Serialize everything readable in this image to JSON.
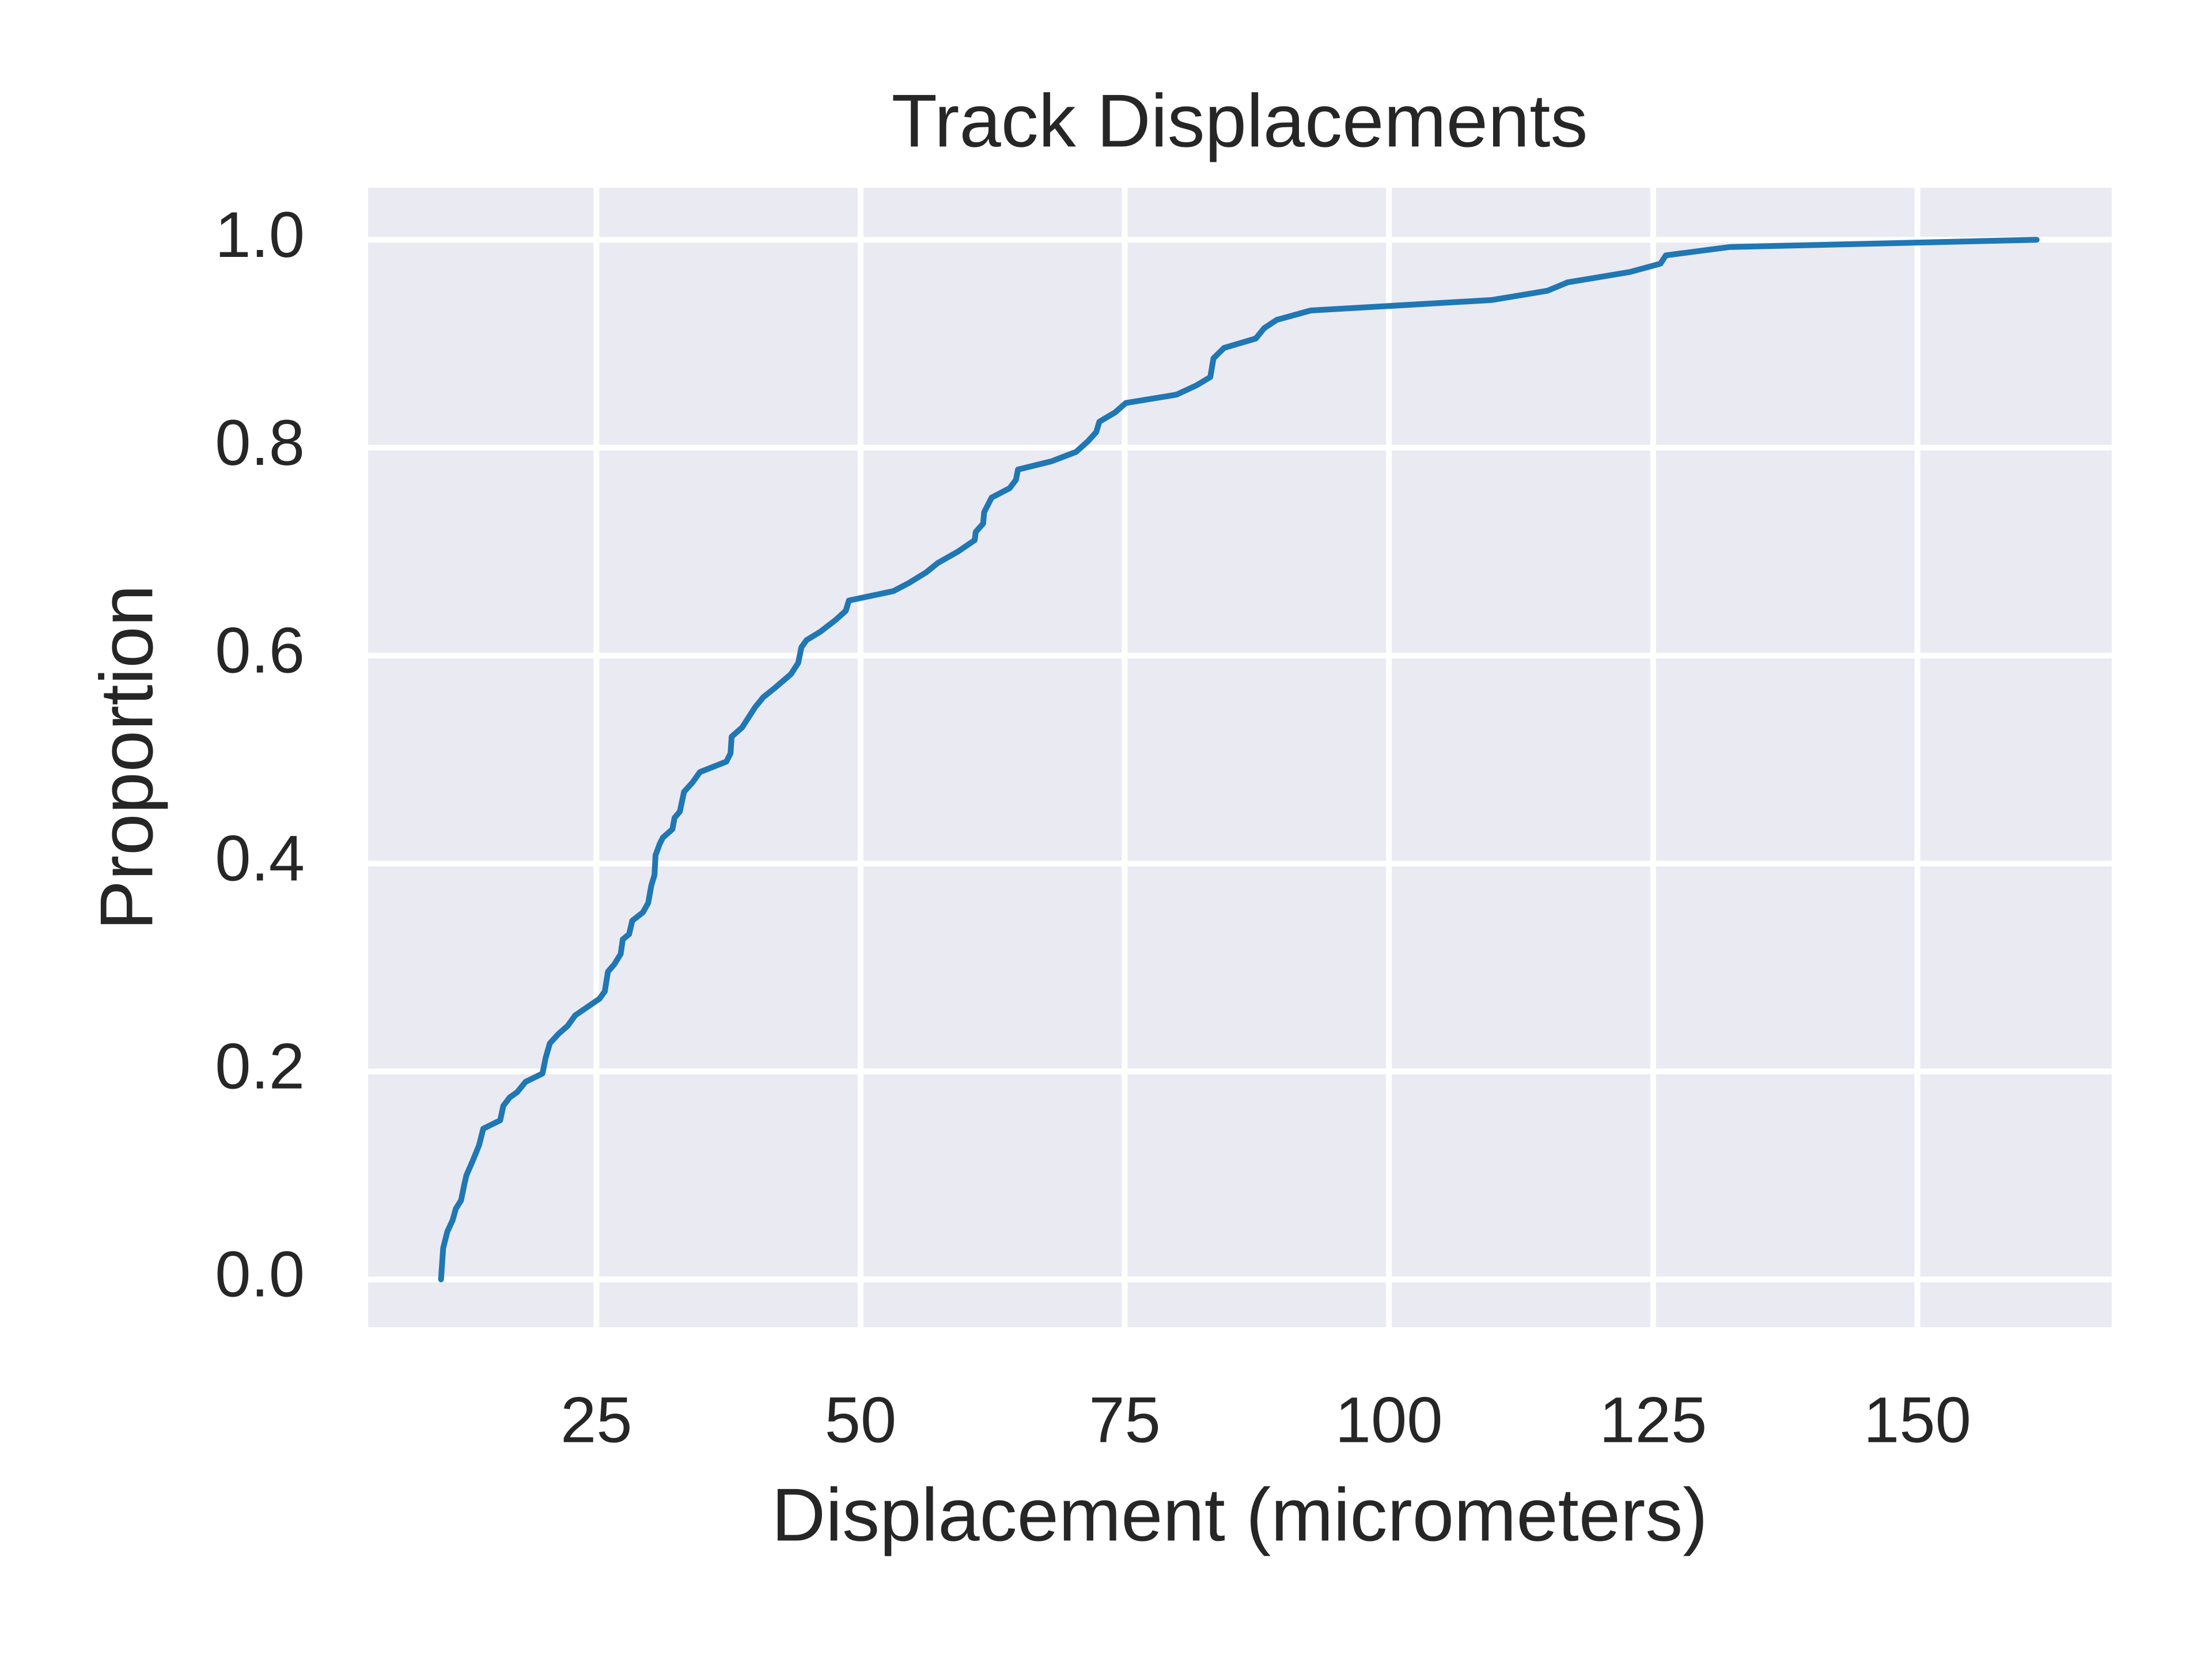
{
  "chart_data": {
    "type": "line",
    "title": "Track Displacements",
    "x_label": "Displacement (micrometers)",
    "y_label": "Proportion",
    "x": [
      10.3,
      10.5,
      10.9,
      11.4,
      11.7,
      12.2,
      12.5,
      12.7,
      13.3,
      13.9,
      14.3,
      15.9,
      16.2,
      16.8,
      17.5,
      18.3,
      19.9,
      20.2,
      20.6,
      21.4,
      22.3,
      23.0,
      25.3,
      25.8,
      26.1,
      26.7,
      27.3,
      27.5,
      28.1,
      28.4,
      29.4,
      29.9,
      30.2,
      30.5,
      30.6,
      31.0,
      31.3,
      32.2,
      32.4,
      32.9,
      33.3,
      34.1,
      34.8,
      37.3,
      37.7,
      37.8,
      38.8,
      40.0,
      40.8,
      41.9,
      43.4,
      44.1,
      44.4,
      44.9,
      46.2,
      47.6,
      48.6,
      48.9,
      53.1,
      54.6,
      56.2,
      57.3,
      59.2,
      60.8,
      60.9,
      61.6,
      61.7,
      62.4,
      64.1,
      64.7,
      64.9,
      68.1,
      70.4,
      71.5,
      72.3,
      72.6,
      74.1,
      75.1,
      79.9,
      81.8,
      83.1,
      83.4,
      84.4,
      87.4,
      88.2,
      89.4,
      92.6,
      109.7,
      115.0,
      116.9,
      122.8,
      125.7,
      126.2,
      132.2,
      161.3
    ],
    "values": [
      0.0,
      0.03,
      0.046,
      0.057,
      0.068,
      0.076,
      0.091,
      0.1,
      0.114,
      0.129,
      0.145,
      0.153,
      0.167,
      0.175,
      0.18,
      0.19,
      0.198,
      0.213,
      0.227,
      0.236,
      0.244,
      0.254,
      0.27,
      0.277,
      0.296,
      0.303,
      0.313,
      0.327,
      0.332,
      0.345,
      0.353,
      0.362,
      0.379,
      0.389,
      0.408,
      0.419,
      0.425,
      0.433,
      0.444,
      0.45,
      0.469,
      0.478,
      0.488,
      0.498,
      0.506,
      0.522,
      0.531,
      0.55,
      0.56,
      0.569,
      0.582,
      0.593,
      0.608,
      0.615,
      0.623,
      0.634,
      0.643,
      0.653,
      0.662,
      0.67,
      0.68,
      0.689,
      0.7,
      0.711,
      0.719,
      0.727,
      0.738,
      0.752,
      0.761,
      0.769,
      0.779,
      0.787,
      0.796,
      0.806,
      0.815,
      0.825,
      0.834,
      0.843,
      0.851,
      0.86,
      0.868,
      0.886,
      0.896,
      0.905,
      0.915,
      0.923,
      0.932,
      0.942,
      0.951,
      0.959,
      0.969,
      0.977,
      0.985,
      0.993,
      1.0
    ],
    "color": "#1f77b4",
    "xlim": [
      3.4,
      168.4
    ],
    "xticks": [
      25,
      50,
      75,
      100,
      125,
      150
    ],
    "ylim": [
      -0.046,
      1.05
    ],
    "yticks": [
      {
        "value": 0,
        "label": "0.0"
      },
      0.2,
      0.4,
      0.6,
      0.8,
      {
        "value": 1,
        "label": "1.0"
      }
    ],
    "grid": true
  }
}
